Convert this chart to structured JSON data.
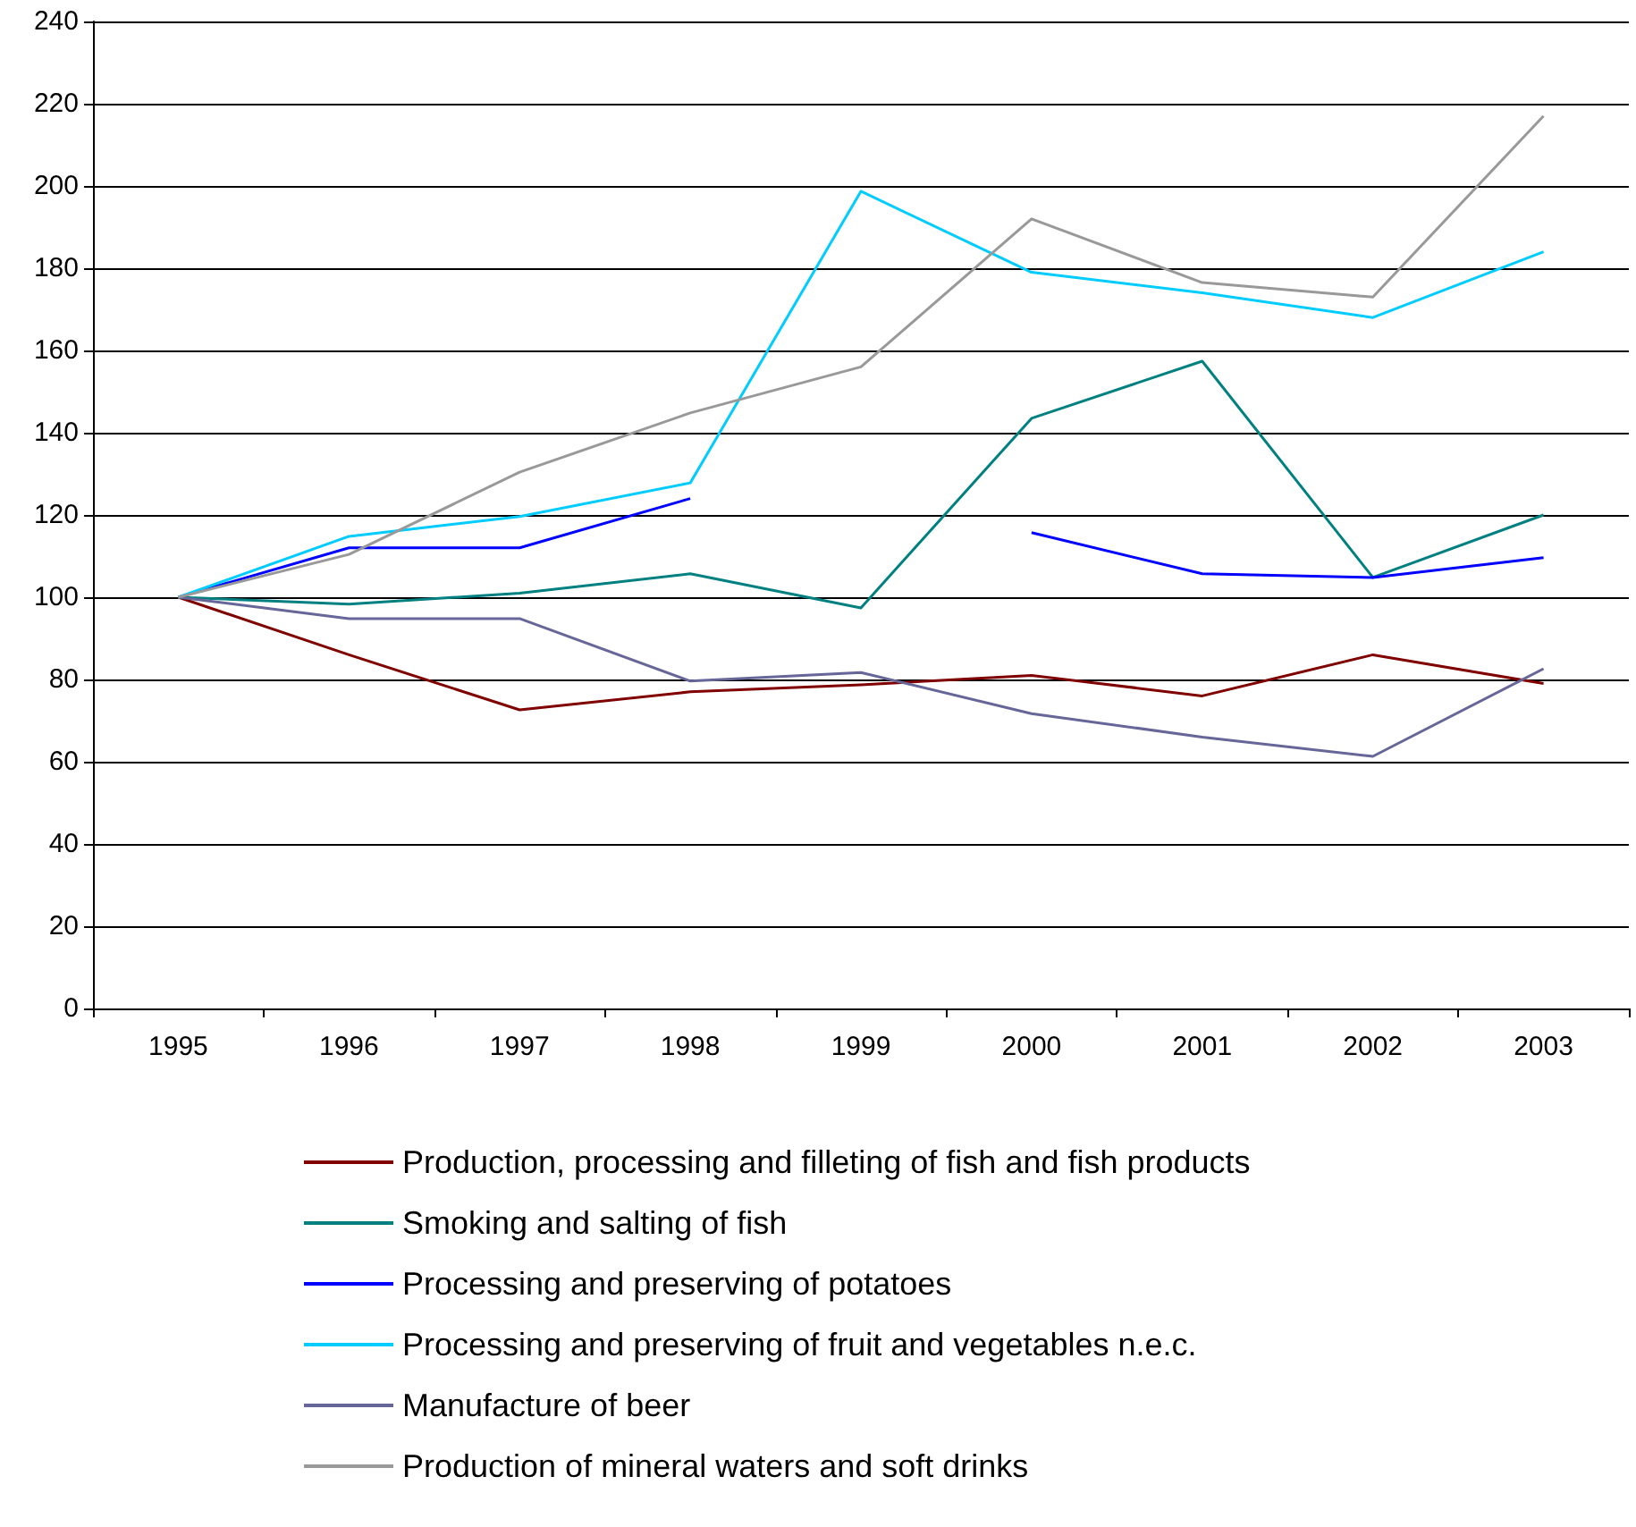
{
  "chart_data": {
    "type": "line",
    "categories": [
      "1995",
      "1996",
      "1997",
      "1998",
      "1999",
      "2000",
      "2001",
      "2002",
      "2003"
    ],
    "ylim": [
      0,
      240
    ],
    "yticks": [
      0,
      20,
      40,
      60,
      80,
      100,
      120,
      140,
      160,
      180,
      200,
      220,
      240
    ],
    "grid": "y",
    "legend": "bottom",
    "marker": "none",
    "line_style": "solid",
    "series": [
      {
        "name": "Production, processing and filleting of fish and fish products",
        "color": "#800000",
        "values": [
          100,
          86,
          72.6,
          77,
          78.7,
          81,
          76,
          86,
          79
        ]
      },
      {
        "name": "Smoking and salting of fish",
        "color": "#008080",
        "values": [
          100,
          98.3,
          101,
          105.7,
          97.4,
          143.5,
          157.4,
          104.8,
          120
        ]
      },
      {
        "name": "Processing and preserving of potatoes",
        "color": "#0000ff",
        "values": [
          100,
          112,
          112,
          124,
          null,
          115.7,
          105.7,
          104.8,
          109.6
        ]
      },
      {
        "name": "Processing and preserving of fruit and vegetables n.e.c.",
        "color": "#00ccff",
        "values": [
          100,
          114.8,
          119.6,
          127.8,
          198.7,
          179,
          174,
          168,
          184
        ]
      },
      {
        "name": "Manufacture of beer",
        "color": "#666699",
        "values": [
          100,
          94.8,
          94.8,
          79.6,
          81.7,
          71.7,
          66,
          61.3,
          82.6
        ]
      },
      {
        "name": "Production of mineral waters and soft drinks",
        "color": "#999999",
        "values": [
          100,
          110.4,
          130.4,
          144.8,
          156,
          192,
          176.5,
          173,
          217
        ]
      }
    ]
  }
}
